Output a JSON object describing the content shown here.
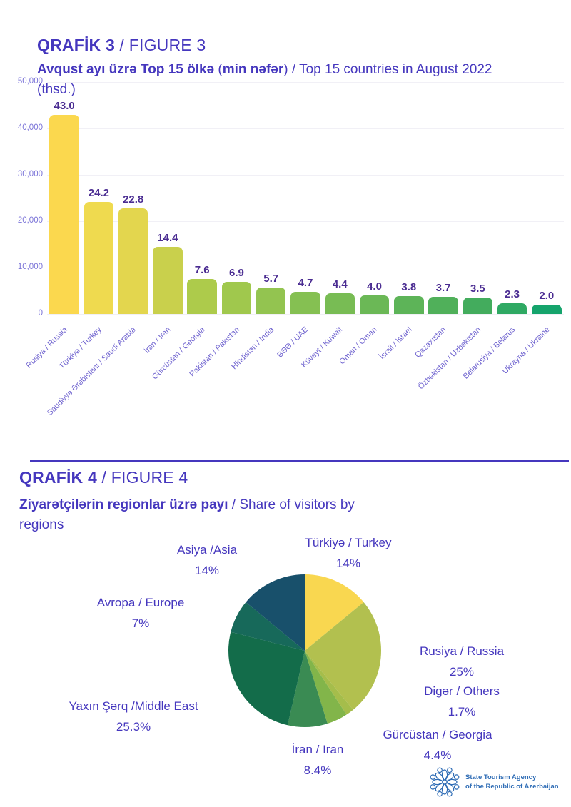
{
  "figure3": {
    "heading": {
      "bold": "QRAFİK 3",
      "rest": " / FIGURE 3"
    },
    "subtitle": {
      "az_bold": "Avqust ayı üzrə Top 15 ölkə ",
      "paren_open": "(",
      "paren_bold": "min nəfər",
      "tail": ") / Top 15 countries in August 2022",
      "line2": "(thsd.)"
    }
  },
  "figure4": {
    "heading": {
      "bold": "QRAFİK 4",
      "rest": " / FIGURE 4"
    },
    "subtitle": {
      "az_bold": "Ziyarətçilərin regionlar üzrə payı",
      "tail": " / Share of visitors by",
      "line2": "regions"
    }
  },
  "footer": {
    "logo_icon": "azerbaijan-tourism-rosette",
    "line1": "State Tourism Agency",
    "line2": "of the Republic of Azerbaijan",
    "color": "#2E6CB5"
  },
  "colors": {
    "heading": "#4537BE",
    "value_label": "#4B2D92",
    "x_category_label": "#6F63CF",
    "y_tick_label": "#7B74D8",
    "gridline": "#F1F0F6",
    "divider": "#4537BE",
    "pie_label": "#4537BE"
  },
  "chart_data": [
    {
      "type": "bar",
      "title": "Avqust ayı üzrə Top 15 ölkə (min nəfər) / Top 15 countries in August 2022 (thsd.)",
      "categories": [
        "Rusiya / Russia",
        "Türkiyə / Turkey",
        "Saudiyyə Ərəbistanı / Saudi Arabia",
        "İran / Iran",
        "Gürcüstan / Georgia",
        "Pakistan / Pakistan",
        "Hindistan / India",
        "BƏƏ / UAE",
        "Küveyt / Kuwait",
        "Oman / Oman",
        "İsrail / Israel",
        "Qazaxıstan",
        "Özbəkistan / Uzbekistan",
        "Belarusiya / Belarus",
        "Ukrayna / Ukraine"
      ],
      "values_thousands": [
        43.0,
        24.2,
        22.8,
        14.4,
        7.6,
        6.9,
        5.7,
        4.7,
        4.4,
        4.0,
        3.8,
        3.7,
        3.5,
        2.3,
        2.0
      ],
      "value_labels": [
        "43.0",
        "24.2",
        "22.8",
        "14.4",
        "7.6",
        "6.9",
        "5.7",
        "4.7",
        "4.4",
        "4.0",
        "3.8",
        "3.7",
        "3.5",
        "2.3",
        "2.0"
      ],
      "ylim": [
        0,
        50000
      ],
      "yticks": [
        "50,000",
        "40,000",
        "30,000",
        "20,000",
        "10,000",
        "0"
      ],
      "grid": "horizontal",
      "bar_colors": [
        "#FBD84E",
        "#EFDA4F",
        "#E3D64E",
        "#C9D04C",
        "#ADCB4B",
        "#A0C84D",
        "#93C450",
        "#85C052",
        "#78BC54",
        "#6BB856",
        "#5DB458",
        "#50B05A",
        "#43AC5D",
        "#2FA963",
        "#15A46C"
      ]
    },
    {
      "type": "pie",
      "title": "Ziyarətçilərin regionlar üzrə payı / Share of visitors by regions",
      "rotation": "clockwise-from-top",
      "slices": [
        {
          "key": "turkey",
          "label": "Türkiyə / Turkey",
          "pct": 14,
          "pct_label": "14%",
          "color": "#F9D750"
        },
        {
          "key": "russia",
          "label": "Rusiya / Russia",
          "pct": 25,
          "pct_label": "25%",
          "color": "#B2C04F"
        },
        {
          "key": "others",
          "label": "Digər / Others",
          "pct": 1.7,
          "pct_label": "1.7%",
          "color": "#A5BD4B"
        },
        {
          "key": "georgia",
          "label": "Gürcüstan / Georgia",
          "pct": 4.4,
          "pct_label": "4.4%",
          "color": "#82B54A"
        },
        {
          "key": "iran",
          "label": "İran / Iran",
          "pct": 8.4,
          "pct_label": "8.4%",
          "color": "#3A8B53"
        },
        {
          "key": "middle-east",
          "label": "Yaxın Şərq /Middle East",
          "pct": 25.3,
          "pct_label": "25.3%",
          "color": "#136C4A"
        },
        {
          "key": "europe",
          "label": "Avropa / Europe",
          "pct": 7,
          "pct_label": "7%",
          "color": "#17695A"
        },
        {
          "key": "asia",
          "label": "Asiya /Asia",
          "pct": 14,
          "pct_label": "14%",
          "color": "#18506B"
        }
      ]
    }
  ]
}
